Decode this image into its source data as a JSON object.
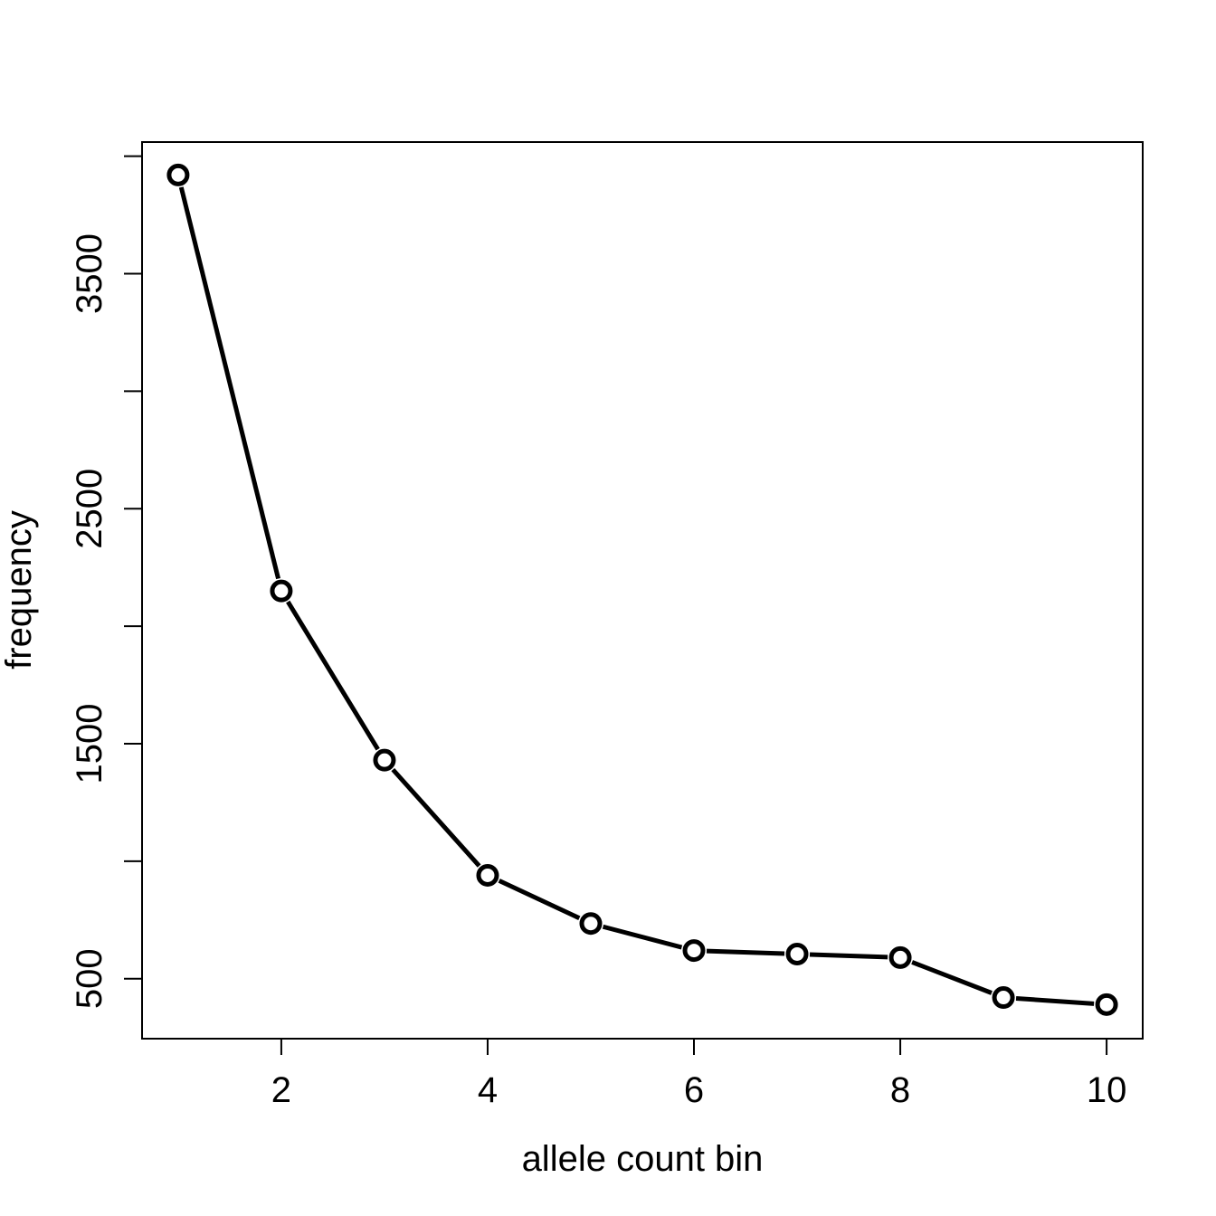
{
  "chart_data": {
    "type": "line",
    "title": "",
    "xlabel": "allele count bin",
    "ylabel": "frequency",
    "x": [
      1,
      2,
      3,
      4,
      5,
      6,
      7,
      8,
      9,
      10
    ],
    "series": [
      {
        "values": [
          3920,
          2150,
          1430,
          940,
          735,
          620,
          605,
          590,
          420,
          390
        ]
      }
    ],
    "xlim": [
      0.65,
      10.35
    ],
    "ylim": [
      245,
      4060
    ],
    "xticks": [
      2,
      4,
      6,
      8,
      10
    ],
    "xtick_labels": [
      "2",
      "4",
      "6",
      "8",
      "10"
    ],
    "yticks": [
      500,
      1000,
      1500,
      2000,
      2500,
      3000,
      3500,
      4000
    ],
    "ytick_labels": [
      "500",
      "",
      "1500",
      "",
      "2500",
      "",
      "3500",
      ""
    ],
    "grid": false,
    "line_color": "#000000",
    "marker": "open-circle"
  }
}
